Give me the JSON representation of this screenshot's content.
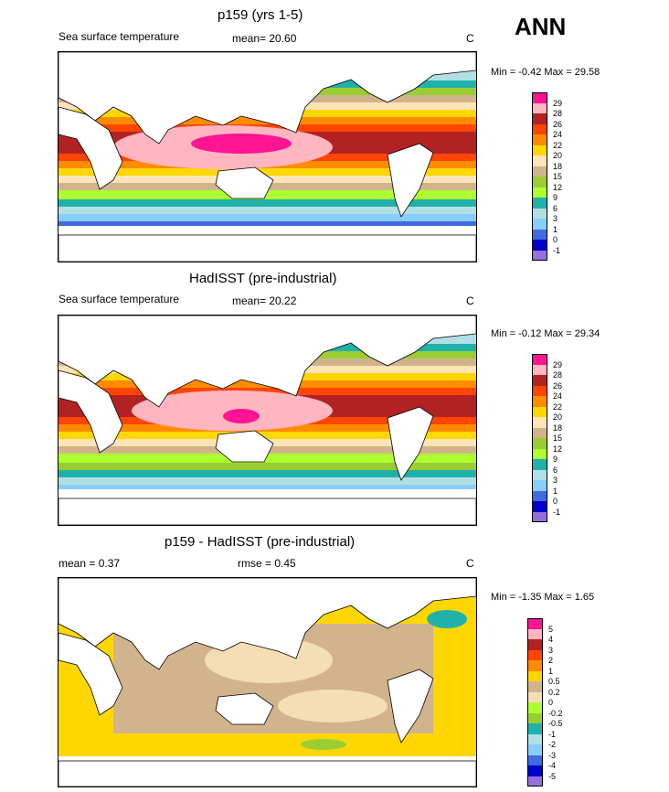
{
  "header": {
    "season": "ANN"
  },
  "panels": [
    {
      "id": "model",
      "title": "p159 (yrs 1-5)",
      "left_label": "Sea surface temperature",
      "stat1": "mean=  20.60",
      "stat2": "",
      "units": "C",
      "minmax": "Min =  -0.42 Max =  29.58",
      "levels": [
        "29",
        "28",
        "26",
        "24",
        "22",
        "20",
        "18",
        "15",
        "12",
        "9",
        "6",
        "3",
        "1",
        "0",
        "-1"
      ],
      "colors": [
        "#ff1493",
        "#ffb6c1",
        "#b22222",
        "#ff4500",
        "#ff8c00",
        "#ffd700",
        "#ffe4b5",
        "#d2b48c",
        "#9acd32",
        "#adff2f",
        "#20b2aa",
        "#b0e0e6",
        "#87cefa",
        "#4169e1",
        "#0000cd",
        "#9370db"
      ]
    },
    {
      "id": "obs",
      "title": "HadISST (pre-industrial)",
      "left_label": "Sea surface temperature",
      "stat1": "mean=  20.22",
      "stat2": "",
      "units": "C",
      "minmax": "Min =  -0.12 Max =  29.34",
      "levels": [
        "29",
        "28",
        "26",
        "24",
        "22",
        "20",
        "18",
        "15",
        "12",
        "9",
        "6",
        "3",
        "1",
        "0",
        "-1"
      ],
      "colors": [
        "#ff1493",
        "#ffb6c1",
        "#b22222",
        "#ff4500",
        "#ff8c00",
        "#ffd700",
        "#ffe4b5",
        "#d2b48c",
        "#9acd32",
        "#adff2f",
        "#20b2aa",
        "#b0e0e6",
        "#87cefa",
        "#4169e1",
        "#0000cd",
        "#9370db"
      ]
    },
    {
      "id": "diff",
      "title": "p159 - HadISST (pre-industrial)",
      "left_label": "mean =   0.37",
      "stat1": "",
      "stat2": "rmse =   0.45",
      "units": "C",
      "minmax": "Min =  -1.35 Max =   1.65",
      "levels": [
        "5",
        "4",
        "3",
        "2",
        "1",
        "0.5",
        "0.2",
        "0",
        "-0.2",
        "-0.5",
        "-1",
        "-2",
        "-3",
        "-4",
        "-5"
      ],
      "colors": [
        "#ff1493",
        "#ffb6c1",
        "#b22222",
        "#ff4500",
        "#ff8c00",
        "#ffd700",
        "#d2b48c",
        "#f5deb3",
        "#adff2f",
        "#9acd32",
        "#20b2aa",
        "#b0e0e6",
        "#87cefa",
        "#4169e1",
        "#0000cd",
        "#9370db"
      ]
    }
  ]
}
